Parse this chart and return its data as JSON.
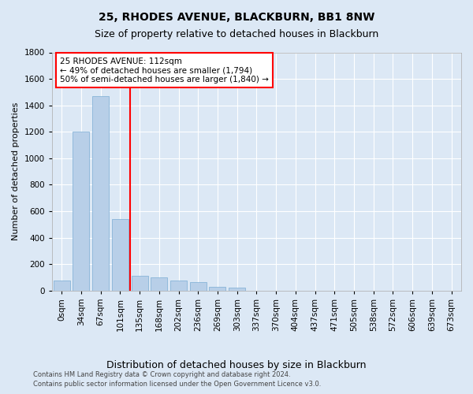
{
  "title1": "25, RHODES AVENUE, BLACKBURN, BB1 8NW",
  "title2": "Size of property relative to detached houses in Blackburn",
  "xlabel": "Distribution of detached houses by size in Blackburn",
  "ylabel": "Number of detached properties",
  "annotation_line1": "25 RHODES AVENUE: 112sqm",
  "annotation_line2": "← 49% of detached houses are smaller (1,794)",
  "annotation_line3": "50% of semi-detached houses are larger (1,840) →",
  "footer1": "Contains HM Land Registry data © Crown copyright and database right 2024.",
  "footer2": "Contains public sector information licensed under the Open Government Licence v3.0.",
  "categories": [
    "0sqm",
    "34sqm",
    "67sqm",
    "101sqm",
    "135sqm",
    "168sqm",
    "202sqm",
    "236sqm",
    "269sqm",
    "303sqm",
    "337sqm",
    "370sqm",
    "404sqm",
    "437sqm",
    "471sqm",
    "505sqm",
    "538sqm",
    "572sqm",
    "606sqm",
    "639sqm",
    "673sqm"
  ],
  "bar_values": [
    75,
    1200,
    1470,
    540,
    115,
    100,
    75,
    65,
    30,
    20,
    0,
    0,
    0,
    0,
    0,
    0,
    0,
    0,
    0,
    0,
    0
  ],
  "bar_color": "#b8cfe8",
  "bar_edge_color": "#7aacd4",
  "vline_color": "red",
  "vline_position": 3.5,
  "ylim": [
    0,
    1800
  ],
  "yticks": [
    0,
    200,
    400,
    600,
    800,
    1000,
    1200,
    1400,
    1600,
    1800
  ],
  "bg_color": "#dce8f5",
  "grid_color": "white",
  "title1_fontsize": 10,
  "title2_fontsize": 9,
  "xlabel_fontsize": 9,
  "ylabel_fontsize": 8,
  "tick_fontsize": 7.5
}
